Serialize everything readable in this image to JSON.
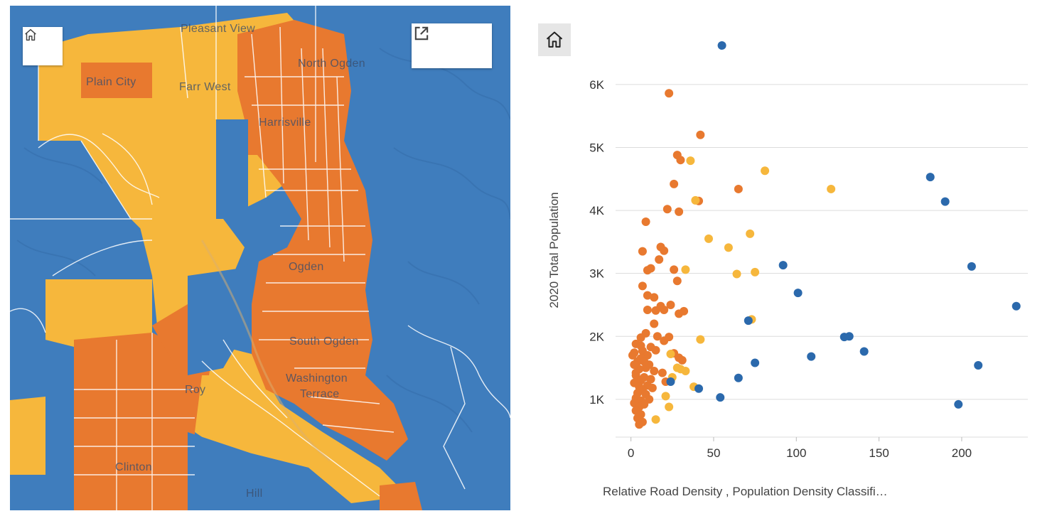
{
  "map": {
    "home_button": {
      "icon": "home-icon"
    },
    "expand_button": {
      "icon": "open-external-icon"
    },
    "labels": {
      "pleasant_view": "Pleasant View",
      "north_ogden": "North Ogden",
      "plain_city": "Plain City",
      "farr_west": "Farr West",
      "harrisville": "Harrisville",
      "ogden": "Ogden",
      "south_ogden": "South Ogden",
      "washington_terrace_1": "Washington",
      "washington_terrace_2": "Terrace",
      "roy": "Roy",
      "clinton": "Clinton",
      "hill": "Hill"
    },
    "colors": {
      "low": "#3f7dbd",
      "medium": "#f6b73c",
      "high": "#e8792f",
      "boundary": "#ffffff"
    }
  },
  "chart_home_button": {
    "icon": "home-icon"
  },
  "chart_data": {
    "type": "scatter",
    "xlabel": "Relative Road Density , Population Density Classifi…",
    "ylabel": "2020 Total Population",
    "xlim": [
      -5,
      240
    ],
    "ylim": [
      400,
      6800
    ],
    "x_ticks": [
      {
        "v": 0,
        "label": "0"
      },
      {
        "v": 50,
        "label": "50"
      },
      {
        "v": 100,
        "label": "100"
      },
      {
        "v": 150,
        "label": "150"
      },
      {
        "v": 200,
        "label": "200"
      }
    ],
    "y_ticks": [
      {
        "v": 1000,
        "label": "1K"
      },
      {
        "v": 2000,
        "label": "2K"
      },
      {
        "v": 3000,
        "label": "3K"
      },
      {
        "v": 4000,
        "label": "4K"
      },
      {
        "v": 5000,
        "label": "5K"
      },
      {
        "v": 6000,
        "label": "6K"
      }
    ],
    "grid": true,
    "series": [
      {
        "color": "#e8792f",
        "points": [
          [
            23,
            5860
          ],
          [
            42,
            5200
          ],
          [
            28,
            4880
          ],
          [
            30,
            4800
          ],
          [
            26,
            4420
          ],
          [
            41,
            4150
          ],
          [
            65,
            4340
          ],
          [
            22,
            4020
          ],
          [
            29,
            3980
          ],
          [
            9,
            3820
          ],
          [
            18,
            3420
          ],
          [
            7,
            3350
          ],
          [
            20,
            3360
          ],
          [
            17,
            3220
          ],
          [
            12,
            3080
          ],
          [
            10,
            3050
          ],
          [
            26,
            3060
          ],
          [
            28,
            2880
          ],
          [
            7,
            2800
          ],
          [
            10,
            2650
          ],
          [
            14,
            2620
          ],
          [
            18,
            2480
          ],
          [
            24,
            2500
          ],
          [
            10,
            2420
          ],
          [
            15,
            2410
          ],
          [
            20,
            2420
          ],
          [
            29,
            2360
          ],
          [
            32,
            2400
          ],
          [
            14,
            2200
          ],
          [
            9,
            2050
          ],
          [
            16,
            2000
          ],
          [
            6,
            1980
          ],
          [
            20,
            1930
          ],
          [
            23,
            1990
          ],
          [
            3,
            1880
          ],
          [
            12,
            1830
          ],
          [
            7,
            1770
          ],
          [
            15,
            1780
          ],
          [
            2,
            1740
          ],
          [
            10,
            1700
          ],
          [
            6,
            1650
          ],
          [
            26,
            1730
          ],
          [
            29,
            1660
          ],
          [
            31,
            1620
          ],
          [
            4,
            1600
          ],
          [
            11,
            1550
          ],
          [
            9,
            1500
          ],
          [
            5,
            1480
          ],
          [
            14,
            1450
          ],
          [
            19,
            1420
          ],
          [
            3,
            1380
          ],
          [
            8,
            1350
          ],
          [
            12,
            1320
          ],
          [
            6,
            1300
          ],
          [
            2,
            1260
          ],
          [
            10,
            1220
          ],
          [
            5,
            1200
          ],
          [
            13,
            1180
          ],
          [
            21,
            1280
          ],
          [
            7,
            1150
          ],
          [
            4,
            1100
          ],
          [
            9,
            1080
          ],
          [
            3,
            1020
          ],
          [
            11,
            1000
          ],
          [
            6,
            980
          ],
          [
            2,
            940
          ],
          [
            8,
            920
          ],
          [
            5,
            880
          ],
          [
            3,
            820
          ],
          [
            6,
            760
          ],
          [
            4,
            700
          ],
          [
            7,
            640
          ],
          [
            5,
            600
          ],
          [
            2,
            1550
          ],
          [
            3,
            1420
          ],
          [
            8,
            1600
          ],
          [
            1,
            1700
          ],
          [
            6,
            1850
          ]
        ]
      },
      {
        "color": "#f6b73c",
        "points": [
          [
            81,
            4630
          ],
          [
            121,
            4340
          ],
          [
            36,
            4790
          ],
          [
            39,
            4160
          ],
          [
            47,
            3550
          ],
          [
            59,
            3410
          ],
          [
            72,
            3630
          ],
          [
            64,
            2990
          ],
          [
            75,
            3020
          ],
          [
            33,
            3060
          ],
          [
            73,
            2270
          ],
          [
            42,
            1950
          ],
          [
            38,
            1200
          ],
          [
            30,
            1480
          ],
          [
            33,
            1450
          ],
          [
            25,
            1350
          ],
          [
            21,
            1050
          ],
          [
            23,
            880
          ],
          [
            15,
            680
          ],
          [
            28,
            1500
          ],
          [
            24,
            1720
          ]
        ]
      },
      {
        "color": "#2b69ac",
        "points": [
          [
            55,
            6620
          ],
          [
            181,
            4530
          ],
          [
            190,
            4140
          ],
          [
            92,
            3130
          ],
          [
            101,
            2690
          ],
          [
            206,
            3110
          ],
          [
            233,
            2480
          ],
          [
            71,
            2250
          ],
          [
            129,
            1990
          ],
          [
            132,
            2000
          ],
          [
            141,
            1760
          ],
          [
            109,
            1680
          ],
          [
            75,
            1580
          ],
          [
            65,
            1340
          ],
          [
            210,
            1540
          ],
          [
            24,
            1280
          ],
          [
            41,
            1170
          ],
          [
            54,
            1030
          ],
          [
            198,
            920
          ]
        ]
      }
    ]
  }
}
